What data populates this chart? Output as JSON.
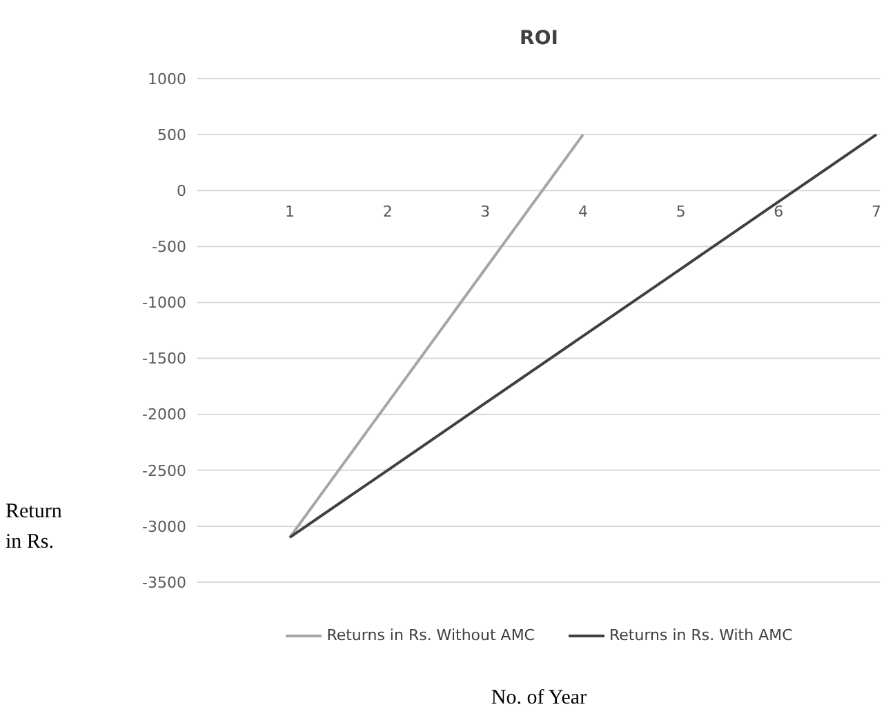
{
  "chart_data": {
    "type": "line",
    "title": "ROI",
    "xlabel": "No. of Year",
    "ylabel": "Return in Rs.",
    "categories": [
      "1",
      "2",
      "3",
      "4",
      "5",
      "6",
      "7"
    ],
    "series": [
      {
        "name": "Returns in Rs. Without AMC",
        "color": "#a6a6a6",
        "values": [
          -3100,
          -1900,
          -700,
          500,
          null,
          null,
          null
        ]
      },
      {
        "name": "Returns in Rs. With AMC",
        "color": "#404040",
        "values": [
          -3100,
          -2500,
          -1900,
          -1300,
          -700,
          -100,
          500
        ]
      }
    ],
    "ylim": [
      -3500,
      1000
    ],
    "yticks": [
      -3500,
      -3000,
      -2500,
      -2000,
      -1500,
      -1000,
      -500,
      0,
      500,
      1000
    ],
    "grid": "y",
    "legend": "bottom",
    "marker": "none",
    "line_style": "solid"
  }
}
